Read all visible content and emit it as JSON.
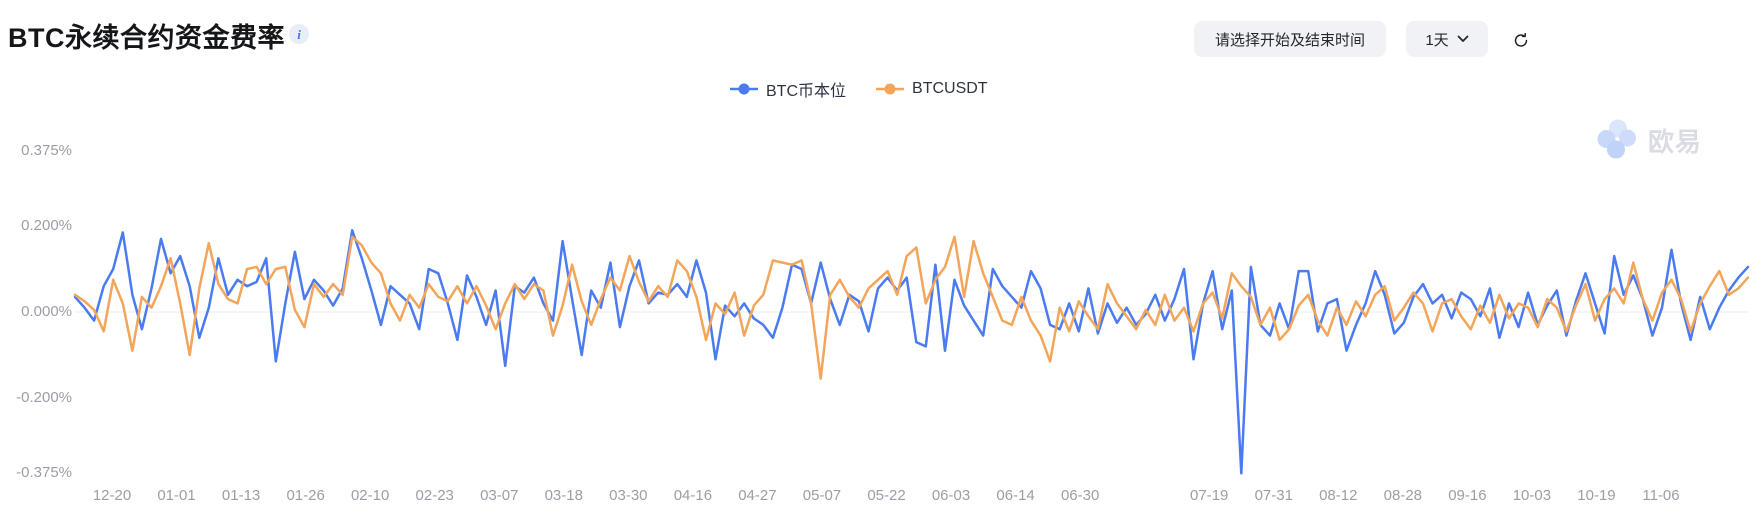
{
  "header": {
    "title": "BTC永续合约资金费率",
    "info_tooltip_glyph": "i"
  },
  "controls": {
    "date_range_placeholder": "请选择开始及结束时间",
    "interval_value": "1天"
  },
  "legend": [
    {
      "label": "BTC币本位",
      "color": "#4a7bf0"
    },
    {
      "label": "BTCUSDT",
      "color": "#f3a55a"
    }
  ],
  "watermark": {
    "label": "欧易"
  },
  "chart_data": {
    "type": "line",
    "title": "BTC永续合约资金费率",
    "unit": "%",
    "grid": "zero-line-only",
    "legend_position": "top-center",
    "ylim": [
      -0.414,
      0.447
    ],
    "y_ticks": [
      {
        "label": "0.375%",
        "value": 0.375
      },
      {
        "label": "0.200%",
        "value": 0.2
      },
      {
        "label": "0.000%",
        "value": 0.0
      },
      {
        "label": "-0.200%",
        "value": -0.2
      },
      {
        "label": "-0.375%",
        "value": -0.375
      }
    ],
    "x_labels": [
      {
        "label": "12-20",
        "slot": 0
      },
      {
        "label": "01-01",
        "slot": 1
      },
      {
        "label": "01-13",
        "slot": 2
      },
      {
        "label": "01-26",
        "slot": 3
      },
      {
        "label": "02-10",
        "slot": 4
      },
      {
        "label": "02-23",
        "slot": 5
      },
      {
        "label": "03-07",
        "slot": 6
      },
      {
        "label": "03-18",
        "slot": 7
      },
      {
        "label": "03-30",
        "slot": 8
      },
      {
        "label": "04-16",
        "slot": 9
      },
      {
        "label": "04-27",
        "slot": 10
      },
      {
        "label": "05-07",
        "slot": 11
      },
      {
        "label": "05-22",
        "slot": 12
      },
      {
        "label": "06-03",
        "slot": 13
      },
      {
        "label": "06-14",
        "slot": 14
      },
      {
        "label": "06-30",
        "slot": 15
      },
      {
        "label": "07-19",
        "slot": 17
      },
      {
        "label": "07-31",
        "slot": 18
      },
      {
        "label": "08-12",
        "slot": 19
      },
      {
        "label": "08-28",
        "slot": 20
      },
      {
        "label": "09-16",
        "slot": 21
      },
      {
        "label": "10-03",
        "slot": 22
      },
      {
        "label": "10-19",
        "slot": 23
      },
      {
        "label": "11-06",
        "slot": 24
      }
    ],
    "series": [
      {
        "name": "BTC币本位",
        "color": "#4a7bf0",
        "values": [
          0.035,
          0.01,
          -0.02,
          0.06,
          0.1,
          0.185,
          0.04,
          -0.04,
          0.055,
          0.17,
          0.09,
          0.13,
          0.06,
          -0.06,
          0.01,
          0.125,
          0.04,
          0.075,
          0.06,
          0.07,
          0.125,
          -0.115,
          0.02,
          0.14,
          0.03,
          0.075,
          0.05,
          0.015,
          0.055,
          0.19,
          0.125,
          0.05,
          -0.03,
          0.06,
          0.04,
          0.02,
          -0.04,
          0.1,
          0.09,
          0.02,
          -0.065,
          0.085,
          0.035,
          -0.03,
          0.05,
          -0.125,
          0.06,
          0.045,
          0.08,
          0.02,
          -0.02,
          0.165,
          0.03,
          -0.1,
          0.05,
          0.01,
          0.115,
          -0.035,
          0.06,
          0.12,
          0.02,
          0.045,
          0.04,
          0.065,
          0.035,
          0.12,
          0.045,
          -0.11,
          0.015,
          -0.01,
          0.02,
          -0.015,
          -0.03,
          -0.06,
          0.01,
          0.11,
          0.1,
          0.02,
          0.115,
          0.03,
          -0.03,
          0.04,
          0.025,
          -0.045,
          0.055,
          0.08,
          0.05,
          0.08,
          -0.07,
          -0.08,
          0.11,
          -0.09,
          0.075,
          0.015,
          -0.02,
          -0.055,
          0.1,
          0.06,
          0.035,
          0.01,
          0.095,
          0.055,
          -0.03,
          -0.04,
          0.02,
          -0.045,
          0.055,
          -0.05,
          0.02,
          -0.025,
          0.01,
          -0.03,
          -0.005,
          0.04,
          -0.02,
          0.03,
          0.1,
          -0.11,
          0.02,
          0.095,
          -0.04,
          0.05,
          -0.375,
          0.105,
          -0.03,
          -0.055,
          0.02,
          -0.04,
          0.095,
          0.095,
          -0.045,
          0.02,
          0.03,
          -0.09,
          -0.03,
          0.02,
          0.095,
          0.04,
          -0.05,
          -0.025,
          0.035,
          0.065,
          0.02,
          0.04,
          -0.015,
          0.045,
          0.03,
          -0.01,
          0.055,
          -0.06,
          0.02,
          -0.035,
          0.045,
          -0.03,
          0.015,
          0.05,
          -0.055,
          0.025,
          0.09,
          0.02,
          -0.05,
          0.13,
          0.04,
          0.085,
          0.03,
          -0.055,
          0.01,
          0.145,
          0.02,
          -0.065,
          0.035,
          -0.04,
          0.01,
          0.05,
          0.08,
          0.105
        ]
      },
      {
        "name": "BTCUSDT",
        "color": "#f3a55a",
        "values": [
          0.04,
          0.025,
          0.005,
          -0.045,
          0.075,
          0.02,
          -0.09,
          0.035,
          0.01,
          0.06,
          0.125,
          0.02,
          -0.1,
          0.055,
          0.16,
          0.065,
          0.03,
          0.02,
          0.1,
          0.105,
          0.065,
          0.1,
          0.105,
          0.005,
          -0.035,
          0.065,
          0.035,
          0.065,
          0.04,
          0.175,
          0.155,
          0.115,
          0.09,
          0.02,
          -0.02,
          0.04,
          0.01,
          0.065,
          0.035,
          0.025,
          0.06,
          0.02,
          0.06,
          0.015,
          -0.04,
          0.02,
          0.065,
          0.03,
          0.065,
          0.05,
          -0.055,
          0.015,
          0.11,
          0.025,
          -0.03,
          0.03,
          0.08,
          0.05,
          0.13,
          0.07,
          0.025,
          0.06,
          0.035,
          0.12,
          0.095,
          0.035,
          -0.065,
          0.02,
          -0.005,
          0.045,
          -0.055,
          0.015,
          0.04,
          0.12,
          0.115,
          0.11,
          0.12,
          0.02,
          -0.155,
          0.04,
          0.075,
          0.035,
          0.01,
          0.055,
          0.075,
          0.095,
          0.04,
          0.13,
          0.15,
          0.02,
          0.075,
          0.105,
          0.175,
          0.035,
          0.165,
          0.09,
          0.035,
          -0.02,
          -0.03,
          0.035,
          -0.02,
          -0.055,
          -0.115,
          0.01,
          -0.045,
          0.025,
          -0.01,
          -0.04,
          0.065,
          0.02,
          -0.01,
          -0.04,
          0.005,
          -0.03,
          0.04,
          -0.02,
          0.01,
          -0.045,
          0.02,
          0.045,
          -0.015,
          0.09,
          0.06,
          0.035,
          -0.03,
          0.01,
          -0.065,
          -0.04,
          0.015,
          0.04,
          -0.02,
          -0.055,
          0.01,
          -0.03,
          0.025,
          -0.01,
          0.04,
          0.06,
          -0.02,
          0.01,
          0.045,
          0.02,
          -0.045,
          0.02,
          0.03,
          -0.01,
          -0.04,
          0.015,
          -0.025,
          0.04,
          -0.015,
          0.02,
          0.01,
          -0.035,
          0.03,
          0.01,
          -0.045,
          0.015,
          0.065,
          -0.02,
          0.03,
          0.055,
          0.02,
          0.115,
          0.03,
          -0.02,
          0.045,
          0.075,
          0.03,
          -0.045,
          0.02,
          0.06,
          0.095,
          0.04,
          0.055,
          0.08
        ]
      }
    ]
  }
}
